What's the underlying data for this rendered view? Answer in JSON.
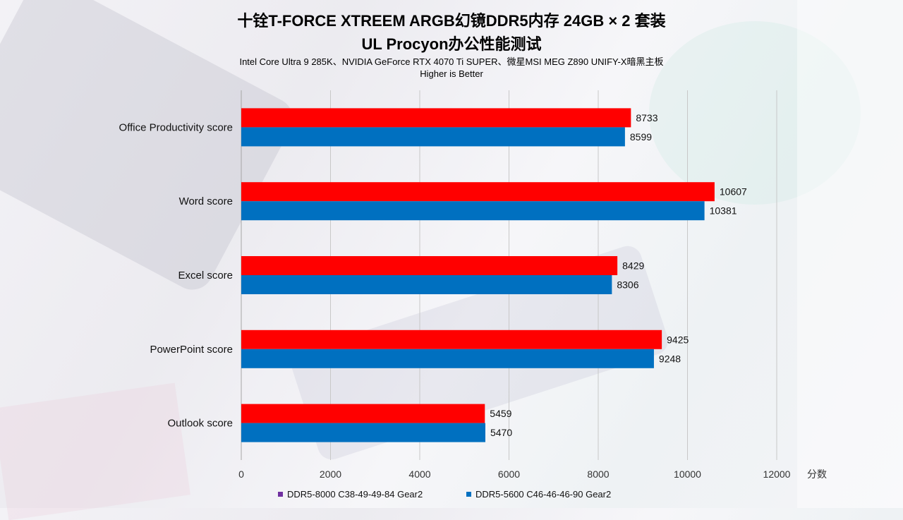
{
  "chart_data": {
    "type": "bar",
    "orientation": "horizontal",
    "title": "十铨T-FORCE XTREEM ARGB幻镜DDR5内存 24GB × 2 套装",
    "subtitle": "UL Procyon办公性能测试",
    "subtitle2": "Intel Core Ultra 9 285K、NVIDIA GeForce RTX 4070 Ti SUPER、微星MSI MEG Z890 UNIFY-X暗黑主板",
    "note": "Higher is Better",
    "categories": [
      "Office Productivity score",
      "Word score",
      "Excel score",
      "PowerPoint score",
      "Outlook score"
    ],
    "series": [
      {
        "name": "DDR5-8000 C38-49-49-84 Gear2",
        "color": "#ff0000",
        "legend_color": "#7030a0",
        "values": [
          8733,
          10607,
          8429,
          9425,
          5459
        ]
      },
      {
        "name": "DDR5-5600 C46-46-46-90 Gear2",
        "color": "#0070c0",
        "legend_color": "#0070c0",
        "values": [
          8599,
          10381,
          8306,
          9248,
          5470
        ]
      }
    ],
    "xlabel": "分数",
    "xlim": [
      0,
      12000
    ],
    "xticks": [
      0,
      2000,
      4000,
      6000,
      8000,
      10000,
      12000
    ],
    "grid": true,
    "legend_position": "bottom"
  }
}
